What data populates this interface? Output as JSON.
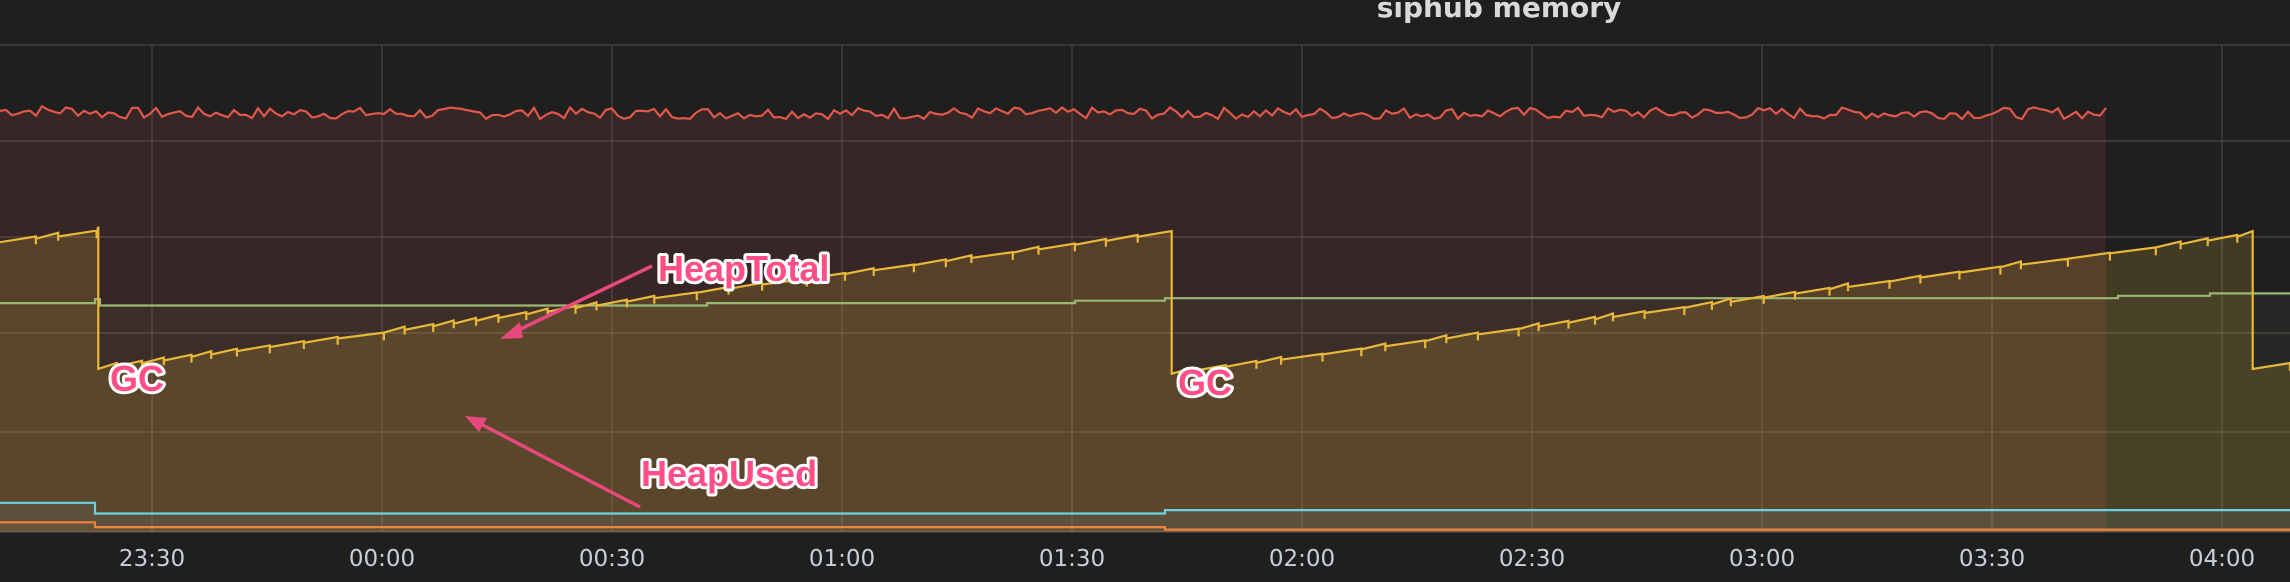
{
  "chart_data": {
    "type": "area",
    "title": "siphub memory",
    "x_ticks": [
      "23:30",
      "00:00",
      "00:30",
      "01:00",
      "01:30",
      "02:00",
      "02:30",
      "03:00",
      "03:30",
      "04:00"
    ],
    "series": [
      {
        "color": "#e0584a",
        "level": 0.86,
        "noise": 0.012,
        "end": "03:45"
      },
      {
        "color": "#9ab873",
        "level": 0.47
      },
      {
        "color": "#eab839",
        "sawtooth": true,
        "gc_times": [
          "23:23",
          "01:43",
          "04:04"
        ]
      },
      {
        "color": "#6ed0e0",
        "level": 0.06
      },
      {
        "color": "#ef843c",
        "level": 0.02
      }
    ],
    "annotations": [
      {
        "text": "HeapTotal",
        "target_series": "HeapTotal"
      },
      {
        "text": "HeapUsed",
        "target_series": "HeapUsed"
      },
      {
        "text": "GC"
      },
      {
        "text": "GC"
      }
    ],
    "grid": true
  }
}
